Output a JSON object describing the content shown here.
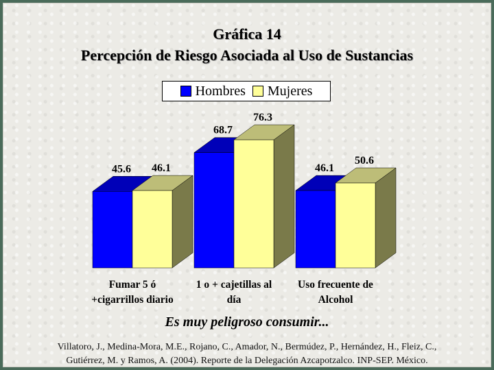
{
  "chart_data": {
    "type": "bar",
    "title": "Gráfica 14",
    "subtitle": "Percepción de Riesgo Asociada al Uso de Sustancias",
    "categories": [
      [
        "Fumar 5 ó",
        "+cigarrillos diario"
      ],
      [
        "1 o + cajetillas al",
        "día"
      ],
      [
        "Uso frecuente de",
        "Alcohol"
      ]
    ],
    "series": [
      {
        "name": "Hombres",
        "values": [
          45.6,
          68.7,
          46.1
        ],
        "color": "#0000ff"
      },
      {
        "name": "Mujeres",
        "values": [
          46.1,
          76.3,
          50.6
        ],
        "color": "#ffff99"
      }
    ],
    "value_labels": [
      [
        "45.6",
        "46.1"
      ],
      [
        "68.7",
        "76.3"
      ],
      [
        "46.1",
        "50.6"
      ]
    ],
    "ylim": [
      0,
      100
    ],
    "grid": false,
    "legend": "top-center",
    "xlabel": "",
    "ylabel": ""
  },
  "caption": "Es muy peligroso consumir...",
  "citation": [
    "Villatoro, J., Medina-Mora, M.E., Rojano, C., Amador, N., Bermúdez, P., Hernández, H., Fleiz, C.,",
    "Gutiérrez, M. y Ramos, A. (2004). Reporte de la Delegación Azcapotzalco. INP-SEP. México."
  ]
}
